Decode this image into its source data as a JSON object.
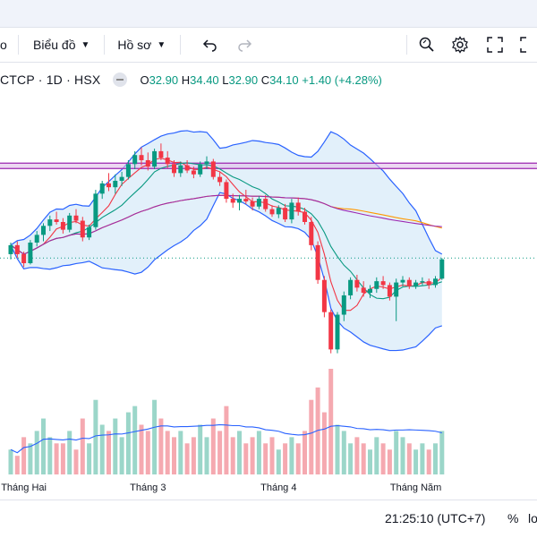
{
  "toolbar": {
    "left_fragment": "o",
    "chart_menu": "Biểu đồ",
    "profile_menu": "Hồ sơ"
  },
  "legend": {
    "symbol": "CTCP · 1D · HSX",
    "open_label": "O",
    "open": "32.90",
    "high_label": "H",
    "high": "34.40",
    "low_label": "L",
    "low": "32.90",
    "close_label": "C",
    "close": "34.10",
    "change": "+1.40 (+4.28%)"
  },
  "colors": {
    "up": "#089981",
    "down": "#f23645",
    "accent": "#2962ff"
  },
  "chart_data": {
    "type": "candlestick",
    "ohlc": [
      [
        28.6,
        29.5,
        28.2,
        29.3
      ],
      [
        29.3,
        29.6,
        28.3,
        28.6
      ],
      [
        28.6,
        28.8,
        27.6,
        27.9
      ],
      [
        27.9,
        29.7,
        27.8,
        29.5
      ],
      [
        29.5,
        30.4,
        29.2,
        30.1
      ],
      [
        30.1,
        31.0,
        29.6,
        30.8
      ],
      [
        30.8,
        31.6,
        30.4,
        31.3
      ],
      [
        31.3,
        31.9,
        30.9,
        31.1
      ],
      [
        31.1,
        31.4,
        30.2,
        30.5
      ],
      [
        30.5,
        31.8,
        30.3,
        31.6
      ],
      [
        31.6,
        32.1,
        31.0,
        31.2
      ],
      [
        31.2,
        31.5,
        29.6,
        29.9
      ],
      [
        29.9,
        30.9,
        29.7,
        30.7
      ],
      [
        30.7,
        33.6,
        30.5,
        33.3
      ],
      [
        33.3,
        34.3,
        32.9,
        34.1
      ],
      [
        34.1,
        34.9,
        33.5,
        33.8
      ],
      [
        33.8,
        34.8,
        33.3,
        34.3
      ],
      [
        34.3,
        35.0,
        33.9,
        34.6
      ],
      [
        34.6,
        35.9,
        34.4,
        35.6
      ],
      [
        35.6,
        36.6,
        35.2,
        36.3
      ],
      [
        36.3,
        36.9,
        35.5,
        35.9
      ],
      [
        35.9,
        36.5,
        35.1,
        35.4
      ],
      [
        35.4,
        36.8,
        35.2,
        36.6
      ],
      [
        36.6,
        37.2,
        35.9,
        36.1
      ],
      [
        36.1,
        36.6,
        35.3,
        35.6
      ],
      [
        35.6,
        35.9,
        34.6,
        34.9
      ],
      [
        34.9,
        35.8,
        34.6,
        35.5
      ],
      [
        35.5,
        35.9,
        34.9,
        35.1
      ],
      [
        35.1,
        35.4,
        34.5,
        34.8
      ],
      [
        34.8,
        35.8,
        34.6,
        35.6
      ],
      [
        35.6,
        36.2,
        35.2,
        35.8
      ],
      [
        35.8,
        36.0,
        34.4,
        34.6
      ],
      [
        34.6,
        35.0,
        33.9,
        34.2
      ],
      [
        34.2,
        34.4,
        32.6,
        32.9
      ],
      [
        32.9,
        33.3,
        32.2,
        32.6
      ],
      [
        32.6,
        33.2,
        32.0,
        32.9
      ],
      [
        32.9,
        33.6,
        32.5,
        32.7
      ],
      [
        32.7,
        33.0,
        32.0,
        32.3
      ],
      [
        32.3,
        33.1,
        32.1,
        32.9
      ],
      [
        32.9,
        33.2,
        31.9,
        32.1
      ],
      [
        32.1,
        32.4,
        31.5,
        31.7
      ],
      [
        31.7,
        32.4,
        31.4,
        32.2
      ],
      [
        32.2,
        32.5,
        31.1,
        31.3
      ],
      [
        31.3,
        32.9,
        31.0,
        32.6
      ],
      [
        32.6,
        33.0,
        31.6,
        31.9
      ],
      [
        31.9,
        32.2,
        30.9,
        31.1
      ],
      [
        31.1,
        31.5,
        28.9,
        29.3
      ],
      [
        29.3,
        29.6,
        26.3,
        26.6
      ],
      [
        26.6,
        26.9,
        23.7,
        24.1
      ],
      [
        24.1,
        24.3,
        20.9,
        21.2
      ],
      [
        21.2,
        24.1,
        20.9,
        23.9
      ],
      [
        23.9,
        25.7,
        23.4,
        25.4
      ],
      [
        25.4,
        26.8,
        25.1,
        26.6
      ],
      [
        26.6,
        27.0,
        25.7,
        26.0
      ],
      [
        26.0,
        26.5,
        25.3,
        25.6
      ],
      [
        25.6,
        26.2,
        25.2,
        25.9
      ],
      [
        25.9,
        26.8,
        25.6,
        26.5
      ],
      [
        26.5,
        26.9,
        25.9,
        26.2
      ],
      [
        26.2,
        26.4,
        25.0,
        25.3
      ],
      [
        25.3,
        26.7,
        23.4,
        26.4
      ],
      [
        26.4,
        26.9,
        26.1,
        26.6
      ],
      [
        26.6,
        26.8,
        25.9,
        26.1
      ],
      [
        26.1,
        26.6,
        25.9,
        26.4
      ],
      [
        26.4,
        26.8,
        26.2,
        26.5
      ],
      [
        26.5,
        26.7,
        25.9,
        26.2
      ],
      [
        26.2,
        26.9,
        26.0,
        26.7
      ],
      [
        26.7,
        28.3,
        26.6,
        28.2
      ]
    ],
    "volume": [
      4,
      3,
      6,
      5,
      7,
      9,
      6,
      5,
      5,
      7,
      4,
      9,
      5,
      12,
      8,
      7,
      9,
      6,
      10,
      11,
      8,
      7,
      12,
      9,
      7,
      6,
      7,
      5,
      6,
      8,
      6,
      9,
      7,
      11,
      6,
      7,
      5,
      6,
      7,
      5,
      6,
      4,
      5,
      6,
      5,
      7,
      12,
      14,
      10,
      17,
      8,
      7,
      5,
      6,
      5,
      4,
      6,
      5,
      4,
      7,
      6,
      5,
      4,
      5,
      4,
      5,
      7
    ],
    "x_ticks": [
      {
        "label": "Tháng Hai",
        "index": 2
      },
      {
        "label": "Tháng 3",
        "index": 21
      },
      {
        "label": "Tháng 4",
        "index": 41
      },
      {
        "label": "Tháng Năm",
        "index": 62
      }
    ]
  },
  "status": {
    "time": "21:25:10 (UTC+7)",
    "percent": "%",
    "fragment": "lo"
  }
}
